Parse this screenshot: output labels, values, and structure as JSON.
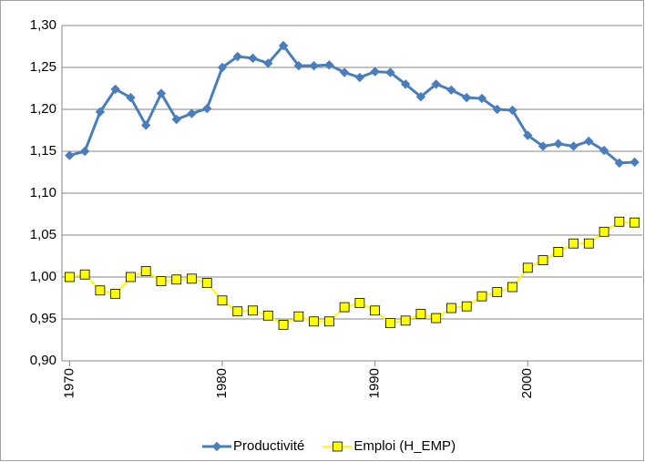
{
  "chart_data": {
    "type": "line",
    "x": [
      1970,
      1971,
      1972,
      1973,
      1974,
      1975,
      1976,
      1977,
      1978,
      1979,
      1980,
      1981,
      1982,
      1983,
      1984,
      1985,
      1986,
      1987,
      1988,
      1989,
      1990,
      1991,
      1992,
      1993,
      1994,
      1995,
      1996,
      1997,
      1998,
      1999,
      2000,
      2001,
      2002,
      2003,
      2004,
      2005,
      2006,
      2007
    ],
    "xlim": [
      1969.5,
      2007.5
    ],
    "xticks": [
      1970,
      1980,
      1990,
      2000
    ],
    "ylim": [
      0.9,
      1.3
    ],
    "yticks": [
      {
        "value": 0.9,
        "label": "0,90"
      },
      {
        "value": 0.95,
        "label": "0,95"
      },
      {
        "value": 1.0,
        "label": "1,00"
      },
      {
        "value": 1.05,
        "label": "1,05"
      },
      {
        "value": 1.1,
        "label": "1,10"
      },
      {
        "value": 1.15,
        "label": "1,15"
      },
      {
        "value": 1.2,
        "label": "1,20"
      },
      {
        "value": 1.25,
        "label": "1,25"
      },
      {
        "value": 1.3,
        "label": "1,30"
      }
    ],
    "grid": true,
    "legend": "bottom",
    "series": [
      {
        "name": "Productivité",
        "color": "#4a7ebb",
        "marker": "diamond",
        "values": [
          1.145,
          1.15,
          1.197,
          1.224,
          1.214,
          1.181,
          1.219,
          1.188,
          1.195,
          1.201,
          1.25,
          1.263,
          1.261,
          1.255,
          1.276,
          1.252,
          1.252,
          1.253,
          1.244,
          1.238,
          1.245,
          1.244,
          1.23,
          1.215,
          1.23,
          1.223,
          1.214,
          1.213,
          1.2,
          1.199,
          1.169,
          1.156,
          1.159,
          1.156,
          1.162,
          1.151,
          1.136,
          1.137
        ]
      },
      {
        "name": "Emploi (H_EMP)",
        "color": "#ffff00",
        "marker": "square",
        "values": [
          1.0,
          1.003,
          0.984,
          0.98,
          1.0,
          1.007,
          0.995,
          0.997,
          0.998,
          0.993,
          0.972,
          0.959,
          0.96,
          0.954,
          0.943,
          0.953,
          0.947,
          0.947,
          0.964,
          0.969,
          0.96,
          0.945,
          0.948,
          0.956,
          0.951,
          0.963,
          0.965,
          0.977,
          0.982,
          0.988,
          1.011,
          1.02,
          1.03,
          1.04,
          1.04,
          1.054,
          1.066,
          1.065
        ]
      }
    ]
  }
}
